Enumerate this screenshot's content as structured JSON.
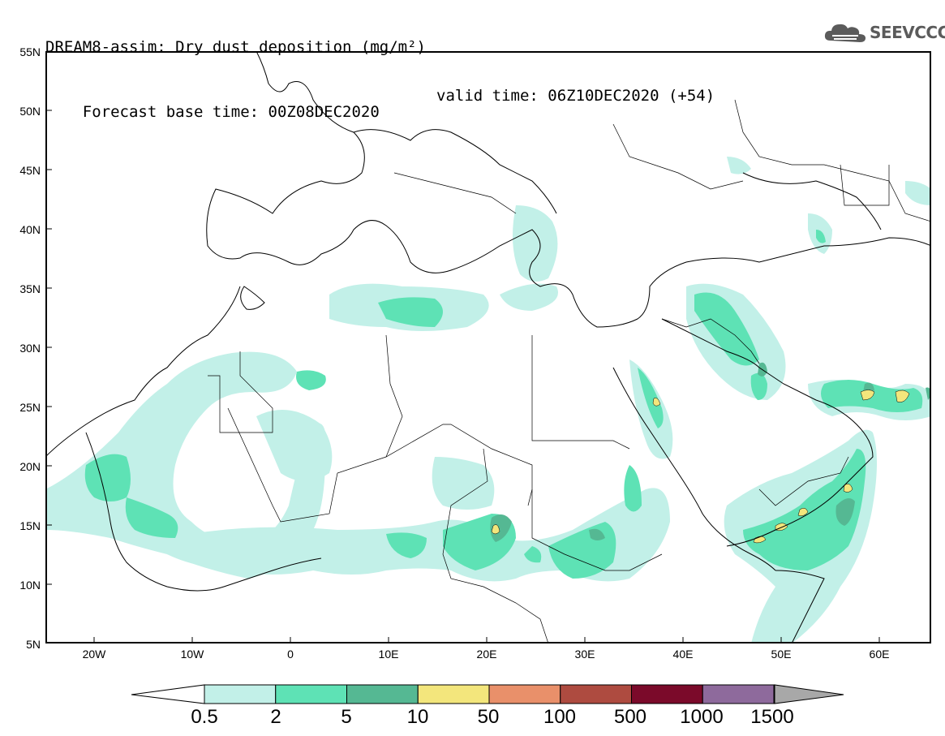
{
  "header": {
    "title_line1": "DREAM8-assim: Dry dust deposition (mg/m²)",
    "title_line2": "Forecast base time: 00Z08DEC2020",
    "valid_time": "valid time: 06Z10DEC2020 (+54)"
  },
  "logo": {
    "text": "SEEVCCC",
    "icon": "cloud-icon"
  },
  "map": {
    "lat_labels": [
      "55N",
      "50N",
      "45N",
      "40N",
      "35N",
      "30N",
      "25N",
      "20N",
      "15N",
      "10N",
      "5N"
    ],
    "lon_labels": [
      "20W",
      "10W",
      "0",
      "10E",
      "20E",
      "30E",
      "40E",
      "50E",
      "60E"
    ],
    "lon_range": [
      -25,
      65
    ],
    "lat_range": [
      5,
      55
    ]
  },
  "legend": {
    "labels": [
      "0.5",
      "2",
      "5",
      "10",
      "50",
      "100",
      "500",
      "1000",
      "1500"
    ],
    "colors": [
      "#c2f0e8",
      "#5ee2b5",
      "#55b893",
      "#f3e67c",
      "#e9906a",
      "#ae4b40",
      "#7b0a2a",
      "#8e6a9c",
      "#a8a8a8"
    ],
    "under_color": "#ffffff"
  }
}
